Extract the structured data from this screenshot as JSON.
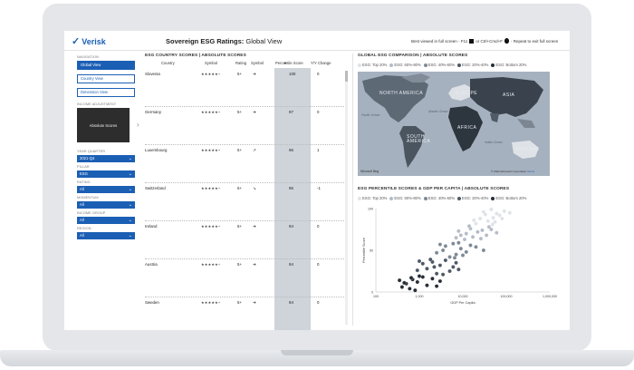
{
  "app": {
    "logo": "Verisk",
    "title_bold": "Sovereign ESG Ratings:",
    "title_rest": " Global View",
    "fullscreen_text": "Best viewed in full screen - F11",
    "fullscreen_or": "or Ctrl+Cmd+F",
    "fullscreen_repeat": "- Repeat to exit full screen"
  },
  "sidebar": {
    "navigation_label": "NAVIGATION",
    "nav": [
      "Global View",
      "Country View",
      "Dimension View"
    ],
    "income_label": "INCOME ADJUSTMENT",
    "income_value": "Absolute Scores",
    "filters": [
      {
        "label": "YEAR QUARTER",
        "value": "2021-Q4"
      },
      {
        "label": "PILLAR",
        "value": "ESG"
      },
      {
        "label": "RATING",
        "value": "All"
      },
      {
        "label": "MOMENTUM",
        "value": "All"
      },
      {
        "label": "INCOME GROUP",
        "value": "All"
      },
      {
        "label": "REGION",
        "value": "All"
      }
    ]
  },
  "table": {
    "title": "ESG COUNTRY SCORES | ABSOLUTE SCORES",
    "columns": [
      "Country",
      "Symbol",
      "Rating",
      "Symbol",
      "Percentile Score",
      "Y/Y Change"
    ],
    "rows": [
      {
        "country": "Slovenia",
        "stars": "★★★★★+",
        "rating": "5+",
        "arrow": "➔",
        "score": "100",
        "change": "0"
      },
      {
        "country": "Germany",
        "stars": "★★★★★+",
        "rating": "5+",
        "arrow": "➔",
        "score": "97",
        "change": "0"
      },
      {
        "country": "Luxembourg",
        "stars": "★★★★★+",
        "rating": "5+",
        "arrow": "↗",
        "score": "96",
        "change": "1"
      },
      {
        "country": "Switzerland",
        "stars": "★★★★★+",
        "rating": "5+",
        "arrow": "↘",
        "score": "96",
        "change": "-1"
      },
      {
        "country": "Ireland",
        "stars": "★★★★★+",
        "rating": "5+",
        "arrow": "➔",
        "score": "94",
        "change": "0"
      },
      {
        "country": "Austria",
        "stars": "★★★★★+",
        "rating": "5+",
        "arrow": "➔",
        "score": "94",
        "change": "0"
      },
      {
        "country": "Sweden",
        "stars": "★★★★★+",
        "rating": "5+",
        "arrow": "➔",
        "score": "94",
        "change": "0"
      }
    ]
  },
  "map": {
    "title": "GLOBAL ESG COMPARISON | ABSOLUTE SCORES",
    "legend": [
      "ESG: Top 20%",
      "ESG: 60%-80%",
      "ESG: 40%-60%",
      "ESG: 20%-40%",
      "ESG: Bottom 20%"
    ],
    "legend_colors": [
      "#dfe3e8",
      "#b4bcc6",
      "#7e8996",
      "#4d5864",
      "#262d35"
    ],
    "labels": {
      "north_america": "NORTH AMERICA",
      "europe": "EUROPE",
      "asia": "ASIA",
      "africa": "AFRICA",
      "south_america": "SOUTH AMERICA",
      "austral": "AUSTRAL",
      "pacific": "Pacific Ocean",
      "atlantic": "Atlantic Ocean",
      "indian": "Indian Ocean"
    },
    "brand": "Microsoft Bing",
    "copyright": "© 2022 Microsoft Corporation",
    "terms": "Terms"
  },
  "scatter": {
    "title": "ESG PERCENTILE SCORES & GDP PER CAPITA | ABSOLUTE SCORES",
    "legend": [
      "ESG: Top 20%",
      "ESG: 60%-80%",
      "ESG: 40%-60%",
      "ESG: 20%-40%",
      "ESG: Bottom 20%"
    ],
    "legend_colors": [
      "#dfe3e8",
      "#b4bcc6",
      "#7e8996",
      "#4d5864",
      "#262d35"
    ]
  },
  "chart_data": {
    "type": "scatter",
    "xlabel": "GDP Per Capita",
    "ylabel": "Percentile Score",
    "x_scale": "log",
    "xlim": [
      100,
      1000000
    ],
    "ylim": [
      0,
      100
    ],
    "x_ticks": [
      "100",
      "1,000",
      "10,000",
      "100,000",
      "1,000,000"
    ],
    "y_ticks": [
      "0",
      "50",
      "100"
    ],
    "series": [
      {
        "name": "ESG: Top 20%",
        "color": "#dfe3e8",
        "points": [
          [
            30000,
            96
          ],
          [
            45000,
            99
          ],
          [
            60000,
            94
          ],
          [
            90000,
            97
          ],
          [
            50000,
            89
          ],
          [
            25000,
            88
          ],
          [
            70000,
            92
          ],
          [
            120000,
            95
          ],
          [
            38000,
            85
          ],
          [
            20000,
            82
          ],
          [
            55000,
            84
          ],
          [
            80000,
            88
          ],
          [
            33000,
            93
          ],
          [
            18000,
            86
          ],
          [
            48000,
            81
          ]
        ]
      },
      {
        "name": "ESG: 60%-80%",
        "color": "#b4bcc6",
        "points": [
          [
            15000,
            76
          ],
          [
            22000,
            72
          ],
          [
            12000,
            70
          ],
          [
            40000,
            78
          ],
          [
            9000,
            68
          ],
          [
            28000,
            74
          ],
          [
            17000,
            66
          ],
          [
            60000,
            71
          ],
          [
            11000,
            63
          ],
          [
            35000,
            68
          ],
          [
            7000,
            65
          ],
          [
            14000,
            79
          ],
          [
            26000,
            64
          ],
          [
            45000,
            75
          ],
          [
            8000,
            73
          ]
        ]
      },
      {
        "name": "ESG: 40%-60%",
        "color": "#7e8996",
        "points": [
          [
            6000,
            58
          ],
          [
            9000,
            52
          ],
          [
            4000,
            55
          ],
          [
            12000,
            48
          ],
          [
            7000,
            45
          ],
          [
            15000,
            56
          ],
          [
            5000,
            42
          ],
          [
            3500,
            50
          ],
          [
            20000,
            54
          ],
          [
            8000,
            59
          ],
          [
            2500,
            47
          ],
          [
            10000,
            44
          ],
          [
            30000,
            50
          ],
          [
            6500,
            41
          ],
          [
            3000,
            57
          ]
        ]
      },
      {
        "name": "ESG: 20%-40%",
        "color": "#4d5864",
        "points": [
          [
            2000,
            36
          ],
          [
            3000,
            32
          ],
          [
            1500,
            28
          ],
          [
            4000,
            38
          ],
          [
            5000,
            25
          ],
          [
            2500,
            22
          ],
          [
            1200,
            34
          ],
          [
            6000,
            30
          ],
          [
            900,
            26
          ],
          [
            3500,
            21
          ],
          [
            7000,
            35
          ],
          [
            1800,
            39
          ],
          [
            2200,
            30
          ],
          [
            8000,
            27
          ],
          [
            1000,
            37
          ]
        ]
      },
      {
        "name": "ESG: Bottom 20%",
        "color": "#262d35",
        "points": [
          [
            500,
            10
          ],
          [
            700,
            15
          ],
          [
            400,
            6
          ],
          [
            900,
            12
          ],
          [
            1200,
            18
          ],
          [
            600,
            4
          ],
          [
            1500,
            8
          ],
          [
            350,
            14
          ],
          [
            2000,
            16
          ],
          [
            800,
            2
          ],
          [
            1000,
            19
          ],
          [
            450,
            11
          ],
          [
            2500,
            7
          ],
          [
            650,
            17
          ],
          [
            3000,
            13
          ]
        ]
      }
    ]
  }
}
